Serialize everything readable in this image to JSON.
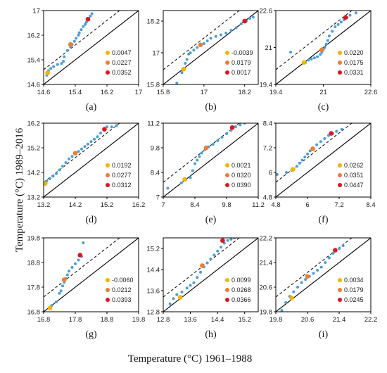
{
  "figure": {
    "xlabel": "Temperature (°C) 1961–1988",
    "ylabel": "Temperature (°C)  1989–2016"
  },
  "colors": {
    "scatter": "#4a9fd8",
    "yellow": "#f4b400",
    "orange": "#ed7d31",
    "red": "#e0141e"
  },
  "chart_data": [
    {
      "type": "scatter",
      "label": "(a)",
      "xlim": [
        14.6,
        17
      ],
      "ylim": [
        14.6,
        17
      ],
      "xticks": [
        "14.6",
        "15.4",
        "16.2",
        "17"
      ],
      "yticks": [
        "14.6",
        "15.4",
        "16.2",
        "17"
      ],
      "points": [
        [
          14.68,
          14.9
        ],
        [
          14.72,
          15.05
        ],
        [
          14.78,
          15.12
        ],
        [
          14.85,
          15.18
        ],
        [
          14.95,
          15.25
        ],
        [
          15.05,
          15.28
        ],
        [
          15.1,
          15.35
        ],
        [
          15.12,
          15.5
        ],
        [
          15.2,
          15.7
        ],
        [
          15.28,
          15.82
        ],
        [
          15.32,
          15.9
        ],
        [
          15.38,
          16.0
        ],
        [
          15.42,
          16.1
        ],
        [
          15.48,
          16.2
        ],
        [
          15.5,
          16.28
        ],
        [
          15.55,
          16.38
        ],
        [
          15.6,
          16.48
        ],
        [
          15.65,
          16.55
        ],
        [
          15.68,
          16.62
        ],
        [
          15.72,
          16.7
        ],
        [
          15.78,
          16.82
        ],
        [
          15.82,
          16.9
        ]
      ],
      "highlights": [
        [
          14.7,
          14.98
        ],
        [
          15.28,
          15.9
        ],
        [
          15.72,
          16.72
        ]
      ],
      "legend": [
        "0.0047",
        "0.0227",
        "0.0352"
      ]
    },
    {
      "type": "scatter",
      "label": "(b)",
      "xlim": [
        15.8,
        18.6
      ],
      "ylim": [
        15.8,
        18.6
      ],
      "xticks": [
        "15.8",
        "17",
        "18.2"
      ],
      "yticks": [
        "15.8",
        "17",
        "18.2"
      ],
      "points": [
        [
          16.2,
          15.85
        ],
        [
          16.35,
          16.25
        ],
        [
          16.4,
          16.35
        ],
        [
          16.45,
          16.6
        ],
        [
          16.5,
          16.75
        ],
        [
          16.55,
          16.95
        ],
        [
          16.6,
          17.0
        ],
        [
          16.7,
          17.1
        ],
        [
          16.8,
          17.2
        ],
        [
          16.9,
          17.3
        ],
        [
          17.0,
          17.35
        ],
        [
          17.1,
          17.45
        ],
        [
          17.2,
          17.55
        ],
        [
          17.35,
          17.62
        ],
        [
          17.5,
          17.68
        ],
        [
          17.65,
          17.75
        ],
        [
          17.8,
          17.85
        ],
        [
          17.95,
          17.95
        ],
        [
          18.1,
          18.1
        ],
        [
          18.25,
          18.2
        ],
        [
          18.35,
          18.3
        ],
        [
          18.45,
          18.35
        ]
      ],
      "highlights": [
        [
          16.4,
          16.38
        ],
        [
          16.9,
          17.3
        ],
        [
          18.2,
          18.2
        ]
      ],
      "legend": [
        "-0.0039",
        "0.0179",
        "0.0017"
      ]
    },
    {
      "type": "scatter",
      "label": "(c)",
      "xlim": [
        19.4,
        22.6
      ],
      "ylim": [
        19.4,
        22.6
      ],
      "xticks": [
        "19.4",
        "21",
        "22.6"
      ],
      "yticks": [
        "19.4",
        "21",
        "22.6"
      ],
      "points": [
        [
          19.9,
          20.8
        ],
        [
          20.4,
          20.35
        ],
        [
          20.5,
          20.45
        ],
        [
          20.6,
          20.5
        ],
        [
          20.7,
          20.55
        ],
        [
          20.8,
          20.6
        ],
        [
          20.9,
          20.7
        ],
        [
          20.95,
          20.8
        ],
        [
          21.0,
          20.9
        ],
        [
          21.05,
          21.0
        ],
        [
          21.1,
          21.15
        ],
        [
          21.15,
          21.3
        ],
        [
          21.2,
          21.5
        ],
        [
          21.3,
          21.7
        ],
        [
          21.4,
          21.9
        ],
        [
          21.5,
          22.0
        ],
        [
          21.6,
          22.1
        ],
        [
          21.7,
          22.2
        ],
        [
          21.8,
          22.3
        ],
        [
          21.9,
          22.4
        ],
        [
          22.1,
          22.5
        ]
      ],
      "highlights": [
        [
          20.35,
          20.35
        ],
        [
          20.95,
          20.9
        ],
        [
          21.75,
          22.3
        ]
      ],
      "legend": [
        "0.0220",
        "0.0175",
        "0.0331"
      ]
    },
    {
      "type": "scatter",
      "label": "(d)",
      "xlim": [
        13.2,
        16.2
      ],
      "ylim": [
        13.2,
        16.2
      ],
      "xticks": [
        "13.2",
        "14.2",
        "15.2",
        "16.2"
      ],
      "yticks": [
        "13.2",
        "14.2",
        "15.2",
        "16.2"
      ],
      "points": [
        [
          13.25,
          13.8
        ],
        [
          13.3,
          13.85
        ],
        [
          13.4,
          13.95
        ],
        [
          13.5,
          14.05
        ],
        [
          13.6,
          14.15
        ],
        [
          13.7,
          14.3
        ],
        [
          13.8,
          14.45
        ],
        [
          13.9,
          14.6
        ],
        [
          14.0,
          14.75
        ],
        [
          14.1,
          14.85
        ],
        [
          14.2,
          14.95
        ],
        [
          14.3,
          15.05
        ],
        [
          14.4,
          15.15
        ],
        [
          14.5,
          15.25
        ],
        [
          14.6,
          15.35
        ],
        [
          14.7,
          15.45
        ],
        [
          14.8,
          15.55
        ],
        [
          14.9,
          15.65
        ],
        [
          15.0,
          15.8
        ],
        [
          15.1,
          15.95
        ],
        [
          15.2,
          16.05
        ],
        [
          15.35,
          16.05
        ],
        [
          15.5,
          16.1
        ]
      ],
      "highlights": [
        [
          13.25,
          13.75
        ],
        [
          14.2,
          14.98
        ],
        [
          15.12,
          15.95
        ]
      ],
      "legend": [
        "0.0192",
        "0.0277",
        "0.0312"
      ]
    },
    {
      "type": "scatter",
      "label": "(e)",
      "xlim": [
        7,
        11.2
      ],
      "ylim": [
        7,
        11.2
      ],
      "xticks": [
        "7",
        "8.4",
        "9.8",
        "11.2"
      ],
      "yticks": [
        "7",
        "8.4",
        "9.8",
        "11.2"
      ],
      "points": [
        [
          7.2,
          7.5
        ],
        [
          7.8,
          7.8
        ],
        [
          8.0,
          8.0
        ],
        [
          8.2,
          8.1
        ],
        [
          8.3,
          8.5
        ],
        [
          8.4,
          8.9
        ],
        [
          8.5,
          9.1
        ],
        [
          8.6,
          9.3
        ],
        [
          8.7,
          9.5
        ],
        [
          8.85,
          9.7
        ],
        [
          9.0,
          9.85
        ],
        [
          9.2,
          10.0
        ],
        [
          9.4,
          10.2
        ],
        [
          9.6,
          10.4
        ],
        [
          9.8,
          10.6
        ],
        [
          10.0,
          10.8
        ],
        [
          10.2,
          11.0
        ],
        [
          10.4,
          11.1
        ],
        [
          10.6,
          11.2
        ]
      ],
      "highlights": [
        [
          7.95,
          8.0
        ],
        [
          8.9,
          9.8
        ],
        [
          10.05,
          10.95
        ]
      ],
      "legend": [
        "0.0021",
        "0.0320",
        "0.0390"
      ]
    },
    {
      "type": "scatter",
      "label": "(f)",
      "xlim": [
        4.8,
        8.4
      ],
      "ylim": [
        4.8,
        8.4
      ],
      "xticks": [
        "4.8",
        "6",
        "7.2",
        "8.4"
      ],
      "yticks": [
        "4.8",
        "6",
        "7.2",
        "8.4"
      ],
      "points": [
        [
          4.85,
          5.9
        ],
        [
          5.2,
          6.0
        ],
        [
          5.4,
          6.1
        ],
        [
          5.6,
          6.3
        ],
        [
          5.7,
          6.45
        ],
        [
          5.8,
          6.6
        ],
        [
          5.9,
          6.75
        ],
        [
          6.0,
          6.9
        ],
        [
          6.1,
          7.05
        ],
        [
          6.2,
          7.2
        ],
        [
          6.35,
          7.35
        ],
        [
          6.5,
          7.5
        ],
        [
          6.65,
          7.65
        ],
        [
          6.8,
          7.8
        ],
        [
          6.95,
          7.9
        ],
        [
          7.1,
          8.0
        ],
        [
          7.3,
          8.1
        ]
      ],
      "highlights": [
        [
          5.45,
          6.15
        ],
        [
          6.2,
          7.15
        ],
        [
          6.9,
          7.9
        ]
      ],
      "legend": [
        "0.0262",
        "0.0351",
        "0.0447"
      ]
    },
    {
      "type": "scatter",
      "label": "(g)",
      "xlim": [
        16.8,
        19.8
      ],
      "ylim": [
        16.8,
        19.8
      ],
      "xticks": [
        "16.8",
        "17.8",
        "18.8",
        "19.8"
      ],
      "yticks": [
        "16.8",
        "17.8",
        "18.8",
        "19.8"
      ],
      "points": [
        [
          17.05,
          17.05
        ],
        [
          17.2,
          17.2
        ],
        [
          17.3,
          17.55
        ],
        [
          17.35,
          17.65
        ],
        [
          17.4,
          17.85
        ],
        [
          17.45,
          18.0
        ],
        [
          17.5,
          18.15
        ],
        [
          17.55,
          18.3
        ],
        [
          17.6,
          18.45
        ],
        [
          17.7,
          18.6
        ],
        [
          17.8,
          18.75
        ],
        [
          17.9,
          18.9
        ],
        [
          18.0,
          19.05
        ],
        [
          18.05,
          19.6
        ]
      ],
      "highlights": [
        [
          17.0,
          16.95
        ],
        [
          17.45,
          18.1
        ],
        [
          17.95,
          19.1
        ]
      ],
      "legend": [
        "-0.0060",
        "0.0212",
        "0.0393"
      ]
    },
    {
      "type": "scatter",
      "label": "(h)",
      "xlim": [
        12.8,
        15.6
      ],
      "ylim": [
        12.8,
        15.6
      ],
      "xticks": [
        "12.8",
        "13.6",
        "14.4",
        "15.2"
      ],
      "yticks": [
        "12.8",
        "13.6",
        "14.4",
        "15.2"
      ],
      "points": [
        [
          13.0,
          13.1
        ],
        [
          13.1,
          13.3
        ],
        [
          13.2,
          13.45
        ],
        [
          13.35,
          13.55
        ],
        [
          13.5,
          13.7
        ],
        [
          13.6,
          13.8
        ],
        [
          13.7,
          13.9
        ],
        [
          13.8,
          14.1
        ],
        [
          13.9,
          14.3
        ],
        [
          14.0,
          14.5
        ],
        [
          14.1,
          14.65
        ],
        [
          14.2,
          14.8
        ],
        [
          14.3,
          14.95
        ],
        [
          14.4,
          15.1
        ],
        [
          14.5,
          15.25
        ],
        [
          14.6,
          15.4
        ],
        [
          14.7,
          15.5
        ],
        [
          14.8,
          15.55
        ],
        [
          14.9,
          15.6
        ]
      ],
      "highlights": [
        [
          13.3,
          13.35
        ],
        [
          13.95,
          14.55
        ],
        [
          14.55,
          15.5
        ]
      ],
      "legend": [
        "0.0099",
        "0.0268",
        "0.0366"
      ]
    },
    {
      "type": "scatter",
      "label": "(i)",
      "xlim": [
        19.8,
        22.2
      ],
      "ylim": [
        19.8,
        22.2
      ],
      "xticks": [
        "19.8",
        "20.6",
        "21.4",
        "22.2"
      ],
      "yticks": [
        "19.8",
        "20.6",
        "21.4",
        "22.2"
      ],
      "points": [
        [
          19.95,
          19.85
        ],
        [
          20.05,
          20.1
        ],
        [
          20.15,
          20.3
        ],
        [
          20.25,
          20.45
        ],
        [
          20.35,
          20.6
        ],
        [
          20.45,
          20.75
        ],
        [
          20.55,
          20.85
        ],
        [
          20.65,
          20.95
        ],
        [
          20.75,
          21.05
        ],
        [
          20.85,
          21.15
        ],
        [
          20.95,
          21.25
        ],
        [
          21.05,
          21.4
        ],
        [
          21.15,
          21.55
        ],
        [
          21.25,
          21.7
        ],
        [
          21.4,
          21.85
        ],
        [
          21.5,
          21.95
        ]
      ],
      "highlights": [
        [
          20.2,
          20.25
        ],
        [
          20.6,
          20.95
        ],
        [
          21.3,
          21.8
        ]
      ],
      "legend": [
        "0.0034",
        "0.0179",
        "0.0245"
      ]
    }
  ]
}
